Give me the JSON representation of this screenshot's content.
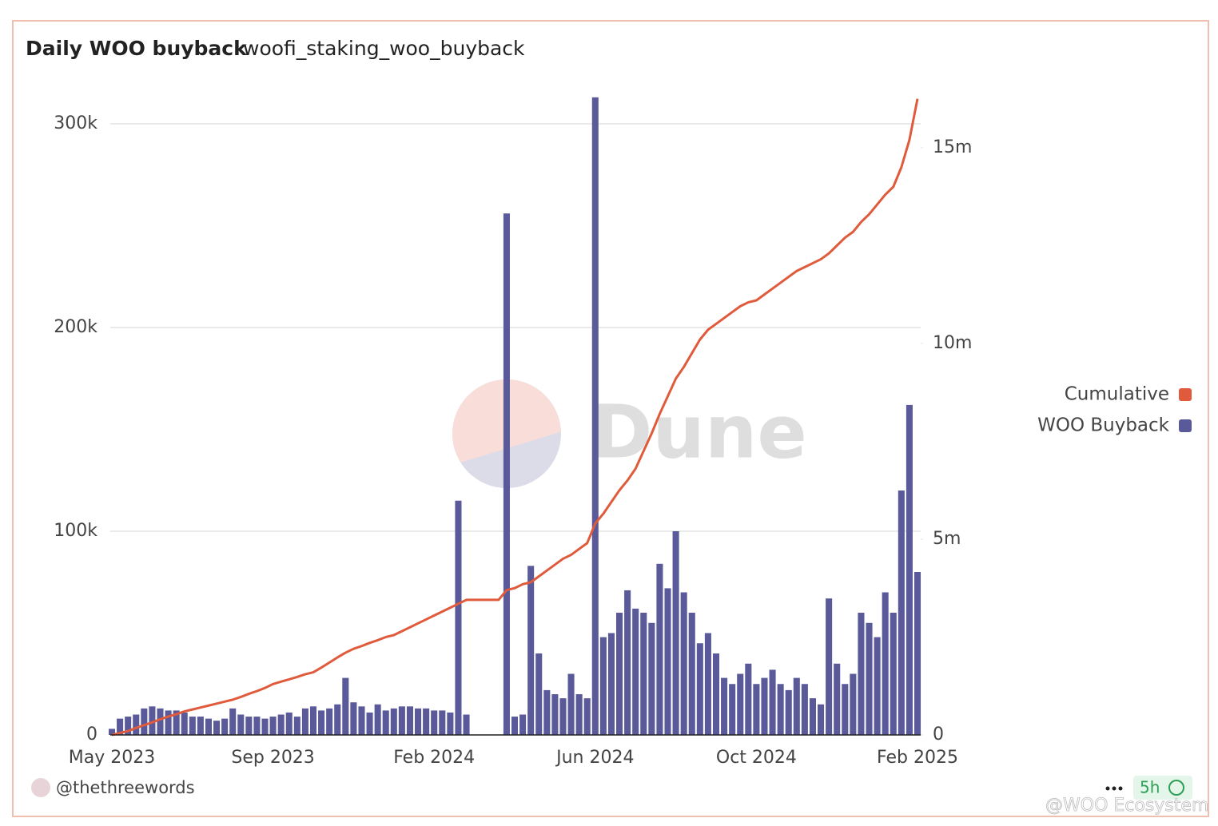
{
  "chart_data": {
    "type": "bar-line",
    "title": "Daily WOO buyback",
    "subtitle": "woofi_staking_woo_buyback",
    "categories": [
      "May 2023",
      null,
      null,
      null,
      null,
      null,
      null,
      null,
      null,
      null,
      null,
      null,
      null,
      null,
      null,
      null,
      null,
      null,
      null,
      null,
      "Sep 2023",
      null,
      null,
      null,
      null,
      null,
      null,
      null,
      null,
      null,
      null,
      null,
      null,
      null,
      null,
      null,
      null,
      null,
      null,
      null,
      "Feb 2024",
      null,
      null,
      null,
      null,
      null,
      null,
      null,
      null,
      null,
      null,
      null,
      null,
      null,
      null,
      null,
      null,
      null,
      null,
      null,
      "Jun 2024",
      null,
      null,
      null,
      null,
      null,
      null,
      null,
      null,
      null,
      null,
      null,
      null,
      null,
      null,
      null,
      null,
      null,
      null,
      null,
      "Oct 2024",
      null,
      null,
      null,
      null,
      null,
      null,
      null,
      null,
      null,
      null,
      null,
      null,
      null,
      null,
      null,
      null,
      null,
      null,
      null,
      "Feb 2025"
    ],
    "series": [
      {
        "name": "Cumulative",
        "color": "#e05a3c",
        "axis": "y2",
        "type": "line",
        "values": [
          0,
          50000,
          100000,
          180000,
          250000,
          320000,
          400000,
          470000,
          530000,
          600000,
          650000,
          700000,
          750000,
          800000,
          850000,
          900000,
          970000,
          1050000,
          1120000,
          1200000,
          1300000,
          1360000,
          1420000,
          1480000,
          1550000,
          1600000,
          1720000,
          1850000,
          1980000,
          2100000,
          2200000,
          2270000,
          2350000,
          2420000,
          2500000,
          2550000,
          2650000,
          2750000,
          2850000,
          2950000,
          3050000,
          3150000,
          3250000,
          3350000,
          3450000,
          3450000,
          3450000,
          3450000,
          3450000,
          3700000,
          3750000,
          3850000,
          3900000,
          4050000,
          4200000,
          4350000,
          4500000,
          4600000,
          4750000,
          4900000,
          5400000,
          5650000,
          5950000,
          6250000,
          6500000,
          6800000,
          7250000,
          7700000,
          8200000,
          8650000,
          9100000,
          9400000,
          9750000,
          10100000,
          10350000,
          10500000,
          10650000,
          10800000,
          10950000,
          11050000,
          11100000,
          11250000,
          11400000,
          11550000,
          11700000,
          11850000,
          11950000,
          12050000,
          12150000,
          12300000,
          12500000,
          12700000,
          12850000,
          13100000,
          13300000,
          13550000,
          13800000,
          14000000,
          14500000,
          15200000,
          16250000
        ]
      },
      {
        "name": "WOO Buyback",
        "color": "#5a5a9a",
        "axis": "y",
        "type": "bar",
        "values": [
          3000,
          8000,
          9000,
          10000,
          13000,
          14000,
          13000,
          12000,
          12000,
          11000,
          9000,
          9000,
          8000,
          7000,
          8000,
          13000,
          10000,
          9000,
          9000,
          8000,
          9000,
          10000,
          11000,
          9000,
          13000,
          14000,
          12000,
          13000,
          15000,
          28000,
          16000,
          14000,
          11000,
          15000,
          12000,
          13000,
          14000,
          14000,
          13000,
          13000,
          12000,
          12000,
          11000,
          115000,
          10000,
          0,
          0,
          0,
          0,
          256000,
          9000,
          10000,
          83000,
          40000,
          22000,
          20000,
          18000,
          30000,
          20000,
          18000,
          313000,
          48000,
          50000,
          60000,
          71000,
          62000,
          60000,
          55000,
          84000,
          72000,
          100000,
          70000,
          60000,
          45000,
          50000,
          40000,
          28000,
          25000,
          30000,
          35000,
          25000,
          28000,
          32000,
          25000,
          22000,
          28000,
          25000,
          18000,
          15000,
          67000,
          35000,
          25000,
          30000,
          60000,
          55000,
          48000,
          70000,
          60000,
          120000,
          162000,
          80000
        ]
      }
    ],
    "ylim": [
      0,
      320000
    ],
    "yticks": [
      {
        "value": 0,
        "label": "0"
      },
      {
        "value": 100000,
        "label": "100k"
      },
      {
        "value": 200000,
        "label": "200k"
      },
      {
        "value": 300000,
        "label": "300k"
      }
    ],
    "y2lim": [
      0,
      16650000
    ],
    "y2ticks": [
      {
        "value": 0,
        "label": "0"
      },
      {
        "value": 5000000,
        "label": "5m"
      },
      {
        "value": 10000000,
        "label": "10m"
      },
      {
        "value": 15000000,
        "label": "15m"
      }
    ],
    "grid": true,
    "legend": "right"
  },
  "page": {
    "author": "@thethreewords",
    "age": "5h",
    "watermark": "Dune",
    "overlay": "@WOO Ecosystem"
  }
}
